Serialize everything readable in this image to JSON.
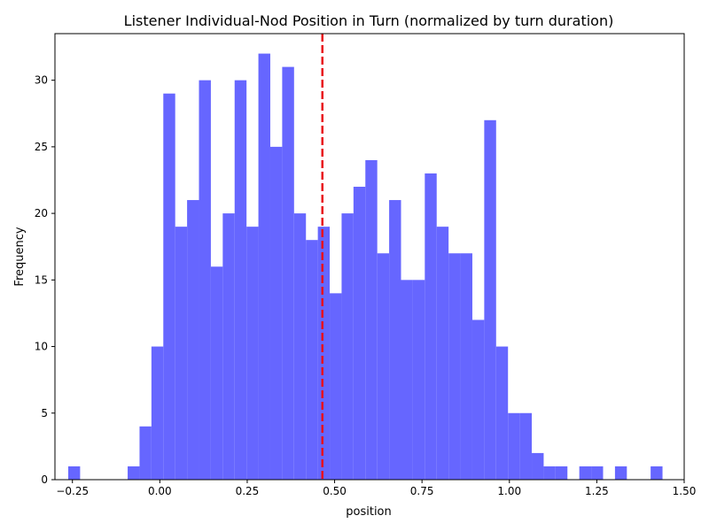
{
  "chart_data": {
    "type": "bar",
    "title": "Listener Individual-Nod Position in Turn (normalized by turn duration)",
    "xlabel": "position",
    "ylabel": "Frequency",
    "xlim": [
      -0.3,
      1.5
    ],
    "ylim": [
      0,
      33.5
    ],
    "xticks": [
      -0.25,
      0.0,
      0.25,
      0.5,
      0.75,
      1.0,
      1.25,
      1.5
    ],
    "xtick_labels": [
      "−0.25",
      "0.00",
      "0.25",
      "0.50",
      "0.75",
      "1.00",
      "1.25",
      "1.50"
    ],
    "yticks": [
      0,
      5,
      10,
      15,
      20,
      25,
      30
    ],
    "ytick_labels": [
      "0",
      "5",
      "10",
      "15",
      "20",
      "25",
      "30"
    ],
    "bin_width": 0.034,
    "bins": [
      {
        "x": -0.262,
        "value": 1
      },
      {
        "x": -0.092,
        "value": 1
      },
      {
        "x": -0.058,
        "value": 4
      },
      {
        "x": -0.024,
        "value": 10
      },
      {
        "x": 0.01,
        "value": 29
      },
      {
        "x": 0.044,
        "value": 19
      },
      {
        "x": 0.078,
        "value": 21
      },
      {
        "x": 0.112,
        "value": 30
      },
      {
        "x": 0.146,
        "value": 16
      },
      {
        "x": 0.18,
        "value": 20
      },
      {
        "x": 0.214,
        "value": 30
      },
      {
        "x": 0.248,
        "value": 19
      },
      {
        "x": 0.282,
        "value": 32
      },
      {
        "x": 0.316,
        "value": 25
      },
      {
        "x": 0.35,
        "value": 31
      },
      {
        "x": 0.384,
        "value": 20
      },
      {
        "x": 0.418,
        "value": 18
      },
      {
        "x": 0.452,
        "value": 19
      },
      {
        "x": 0.486,
        "value": 14
      },
      {
        "x": 0.52,
        "value": 20
      },
      {
        "x": 0.554,
        "value": 22
      },
      {
        "x": 0.588,
        "value": 24
      },
      {
        "x": 0.622,
        "value": 17
      },
      {
        "x": 0.656,
        "value": 21
      },
      {
        "x": 0.69,
        "value": 15
      },
      {
        "x": 0.724,
        "value": 15
      },
      {
        "x": 0.758,
        "value": 23
      },
      {
        "x": 0.792,
        "value": 19
      },
      {
        "x": 0.826,
        "value": 17
      },
      {
        "x": 0.86,
        "value": 17
      },
      {
        "x": 0.894,
        "value": 12
      },
      {
        "x": 0.928,
        "value": 27
      },
      {
        "x": 0.962,
        "value": 10
      },
      {
        "x": 0.996,
        "value": 5
      },
      {
        "x": 1.03,
        "value": 5
      },
      {
        "x": 1.064,
        "value": 2
      },
      {
        "x": 1.098,
        "value": 1
      },
      {
        "x": 1.132,
        "value": 1
      },
      {
        "x": 1.2,
        "value": 1
      },
      {
        "x": 1.234,
        "value": 1
      },
      {
        "x": 1.302,
        "value": 1
      },
      {
        "x": 1.404,
        "value": 1
      }
    ],
    "mean_line": {
      "x": 0.465
    },
    "colors": {
      "bars": "#6666ff",
      "mean_line": "#e8101a"
    },
    "grid": false
  }
}
